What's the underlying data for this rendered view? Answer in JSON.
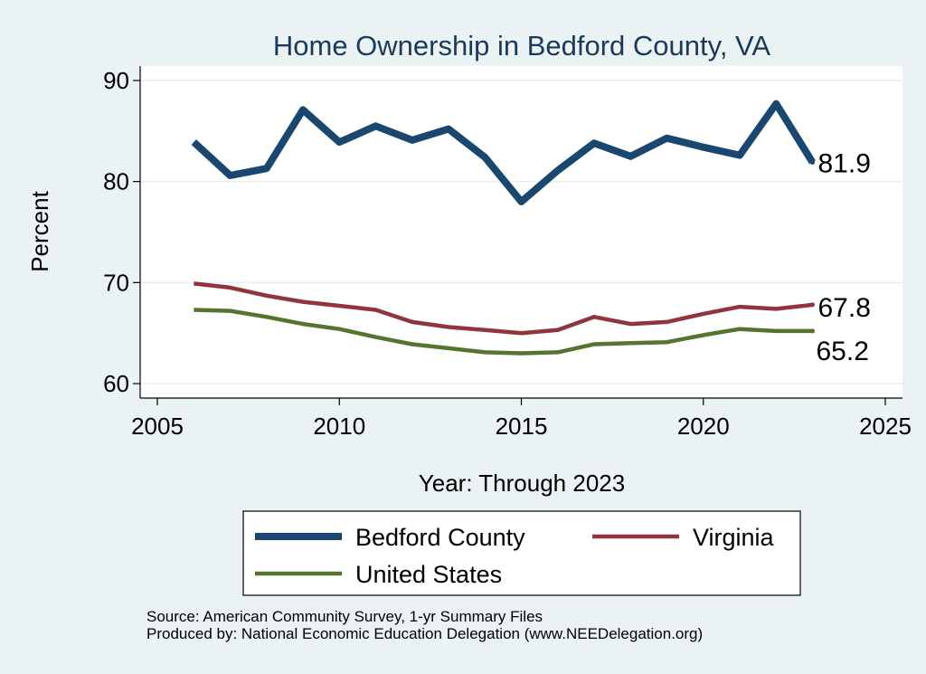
{
  "chart_data": {
    "type": "line",
    "title": "Home Ownership in Bedford County, VA",
    "xlabel": "Year: Through 2023",
    "ylabel": "Percent",
    "xlim": [
      2005,
      2025
    ],
    "ylim": [
      60,
      90
    ],
    "xticks": [
      2005,
      2010,
      2015,
      2020,
      2025
    ],
    "yticks": [
      60,
      70,
      80,
      90
    ],
    "grid": true,
    "legend_position": "bottom",
    "x": [
      2006,
      2007,
      2008,
      2009,
      2010,
      2011,
      2012,
      2013,
      2014,
      2015,
      2016,
      2017,
      2018,
      2019,
      2020,
      2021,
      2022,
      2023
    ],
    "series": [
      {
        "name": "Bedford County",
        "color": "#1a476f",
        "values": [
          83.9,
          80.6,
          81.3,
          87.1,
          83.9,
          85.5,
          84.1,
          85.2,
          82.4,
          78.0,
          81.1,
          83.8,
          82.5,
          84.3,
          83.4,
          82.6,
          87.7,
          81.9
        ],
        "end_label": "81.9"
      },
      {
        "name": "Virginia",
        "color": "#90353b",
        "values": [
          69.9,
          69.5,
          68.7,
          68.1,
          67.7,
          67.3,
          66.1,
          65.6,
          65.3,
          65.0,
          65.3,
          66.6,
          65.9,
          66.1,
          66.9,
          67.6,
          67.4,
          67.8
        ],
        "end_label": "67.8"
      },
      {
        "name": "United States",
        "color": "#55752f",
        "values": [
          67.3,
          67.2,
          66.6,
          65.9,
          65.4,
          64.6,
          63.9,
          63.5,
          63.1,
          63.0,
          63.1,
          63.9,
          64.0,
          64.1,
          64.8,
          65.4,
          65.2,
          65.2
        ],
        "end_label": "65.2"
      }
    ]
  },
  "footer": {
    "source": "Source: American Community Survey, 1-yr Summary Files",
    "produced_by": "Produced by: National Economic Education Delegation (www.NEEDelegation.org)"
  }
}
